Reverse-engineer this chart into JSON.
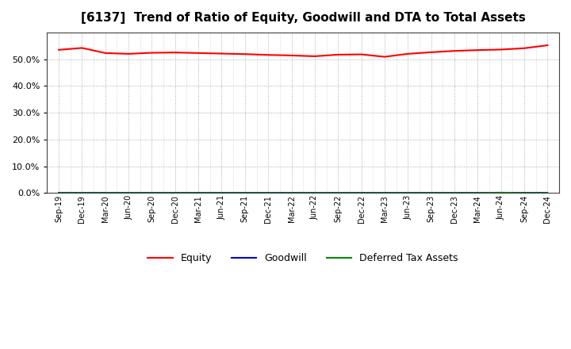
{
  "title": "[6137]  Trend of Ratio of Equity, Goodwill and DTA to Total Assets",
  "x_labels": [
    "Sep-19",
    "Dec-19",
    "Mar-20",
    "Jun-20",
    "Sep-20",
    "Dec-20",
    "Mar-21",
    "Jun-21",
    "Sep-21",
    "Dec-21",
    "Mar-22",
    "Jun-22",
    "Sep-22",
    "Dec-22",
    "Mar-23",
    "Jun-23",
    "Sep-23",
    "Dec-23",
    "Mar-24",
    "Jun-24",
    "Sep-24",
    "Dec-24"
  ],
  "equity": [
    53.5,
    54.2,
    52.3,
    52.0,
    52.4,
    52.5,
    52.3,
    52.1,
    51.9,
    51.6,
    51.4,
    51.1,
    51.7,
    51.8,
    50.9,
    52.0,
    52.6,
    53.1,
    53.4,
    53.6,
    54.1,
    55.2
  ],
  "goodwill": [
    0.0,
    0.0,
    0.0,
    0.0,
    0.0,
    0.0,
    0.0,
    0.0,
    0.0,
    0.0,
    0.0,
    0.0,
    0.0,
    0.0,
    0.0,
    0.0,
    0.0,
    0.0,
    0.0,
    0.0,
    0.0,
    0.0
  ],
  "dta": [
    0.0,
    0.0,
    0.0,
    0.0,
    0.0,
    0.0,
    0.0,
    0.0,
    0.0,
    0.0,
    0.0,
    0.0,
    0.0,
    0.0,
    0.0,
    0.0,
    0.0,
    0.0,
    0.0,
    0.12,
    0.0,
    0.0
  ],
  "equity_color": "#ff0000",
  "goodwill_color": "#0000cc",
  "dta_color": "#008800",
  "ylim": [
    0.0,
    60.0
  ],
  "yticks": [
    0.0,
    10.0,
    20.0,
    30.0,
    40.0,
    50.0
  ],
  "background_color": "#ffffff",
  "plot_bg_color": "#ffffff",
  "grid_color": "#999999",
  "title_fontsize": 11,
  "legend_labels": [
    "Equity",
    "Goodwill",
    "Deferred Tax Assets"
  ]
}
